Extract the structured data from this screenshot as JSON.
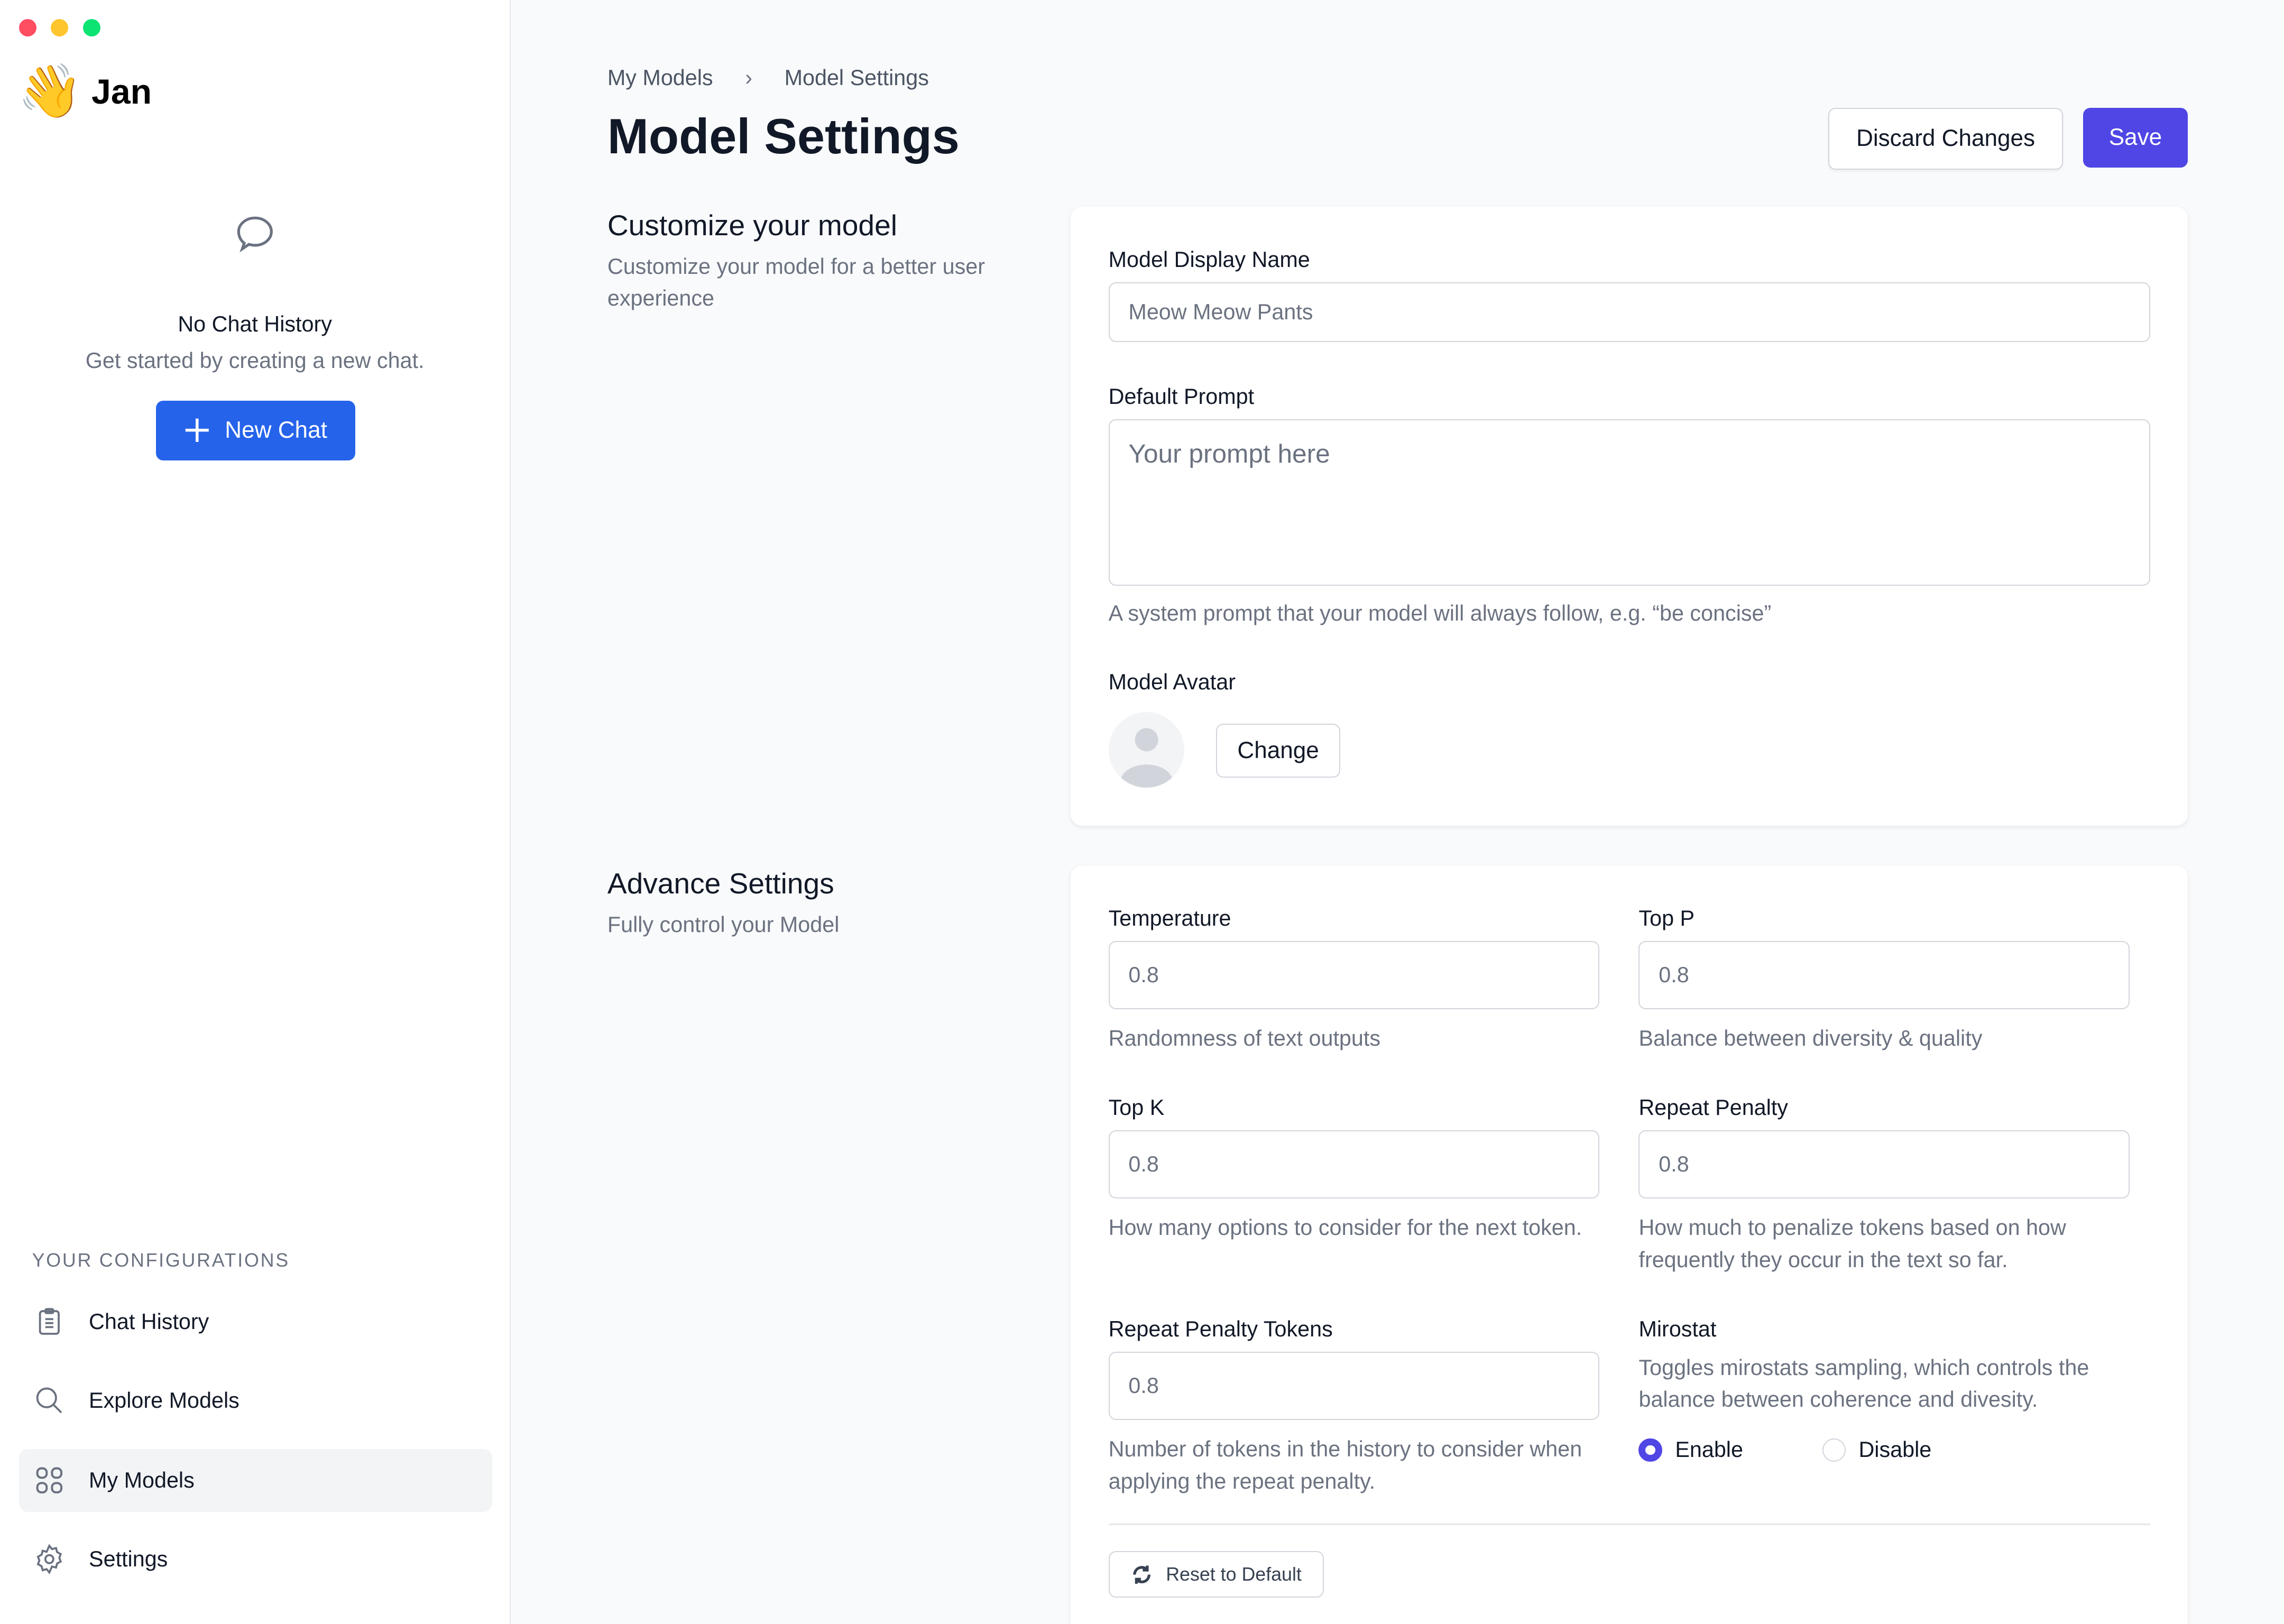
{
  "window": {
    "controls": {
      "close": "#ff5f57",
      "minimize": "#febc2e",
      "maximize": "#28c840"
    }
  },
  "sidebar": {
    "app_name": "Jan",
    "logo_icon": "waving-hand",
    "empty_state": {
      "icon": "chat-bubble-icon",
      "title": "No Chat History",
      "subtitle": "Get started by creating a new chat."
    },
    "new_chat_label": "New Chat",
    "section_title": "YOUR CONFIGURATIONS",
    "items": [
      {
        "label": "Chat History",
        "icon": "clipboard-icon",
        "active": false
      },
      {
        "label": "Explore Models",
        "icon": "search-icon",
        "active": false
      },
      {
        "label": "My Models",
        "icon": "grid-icon",
        "active": true
      },
      {
        "label": "Settings",
        "icon": "gear-icon",
        "active": false
      }
    ]
  },
  "header": {
    "breadcrumb": [
      "My Models",
      "Model Settings"
    ],
    "title": "Model Settings",
    "discard_label": "Discard Changes",
    "save_label": "Save"
  },
  "customize": {
    "title": "Customize your model",
    "description": "Customize your model for a better user experience",
    "display_name": {
      "label": "Model Display Name",
      "value": "Meow Meow Pants"
    },
    "prompt": {
      "label": "Default Prompt",
      "placeholder": "Your prompt here",
      "help": "A system prompt that your model will always follow, e.g. “be concise”"
    },
    "avatar": {
      "label": "Model Avatar",
      "change_label": "Change"
    }
  },
  "advanced": {
    "title": "Advance Settings",
    "description": "Fully control your Model",
    "temperature": {
      "label": "Temperature",
      "value": "0.8",
      "help": "Randomness of text outputs"
    },
    "top_p": {
      "label": "Top P",
      "value": "0.8",
      "help": "Balance between diversity & quality"
    },
    "top_k": {
      "label": "Top K",
      "value": "0.8",
      "help": "How many options to consider for the next token."
    },
    "repeat_penalty": {
      "label": "Repeat Penalty",
      "value": "0.8",
      "help": "How much to penalize tokens based on how frequently they occur in the text so far."
    },
    "repeat_penalty_tokens": {
      "label": "Repeat Penalty Tokens",
      "value": "0.8",
      "help": "Number of tokens in the history to consider when applying the repeat penalty."
    },
    "mirostat": {
      "label": "Mirostat",
      "help": "Toggles mirostats sampling, which controls the balance between coherence and divesity.",
      "options": [
        "Enable",
        "Disable"
      ],
      "selected": "Enable"
    },
    "reset_label": "Reset to Default"
  },
  "colors": {
    "primary": "#4f46e5",
    "new_chat": "#2563eb"
  }
}
